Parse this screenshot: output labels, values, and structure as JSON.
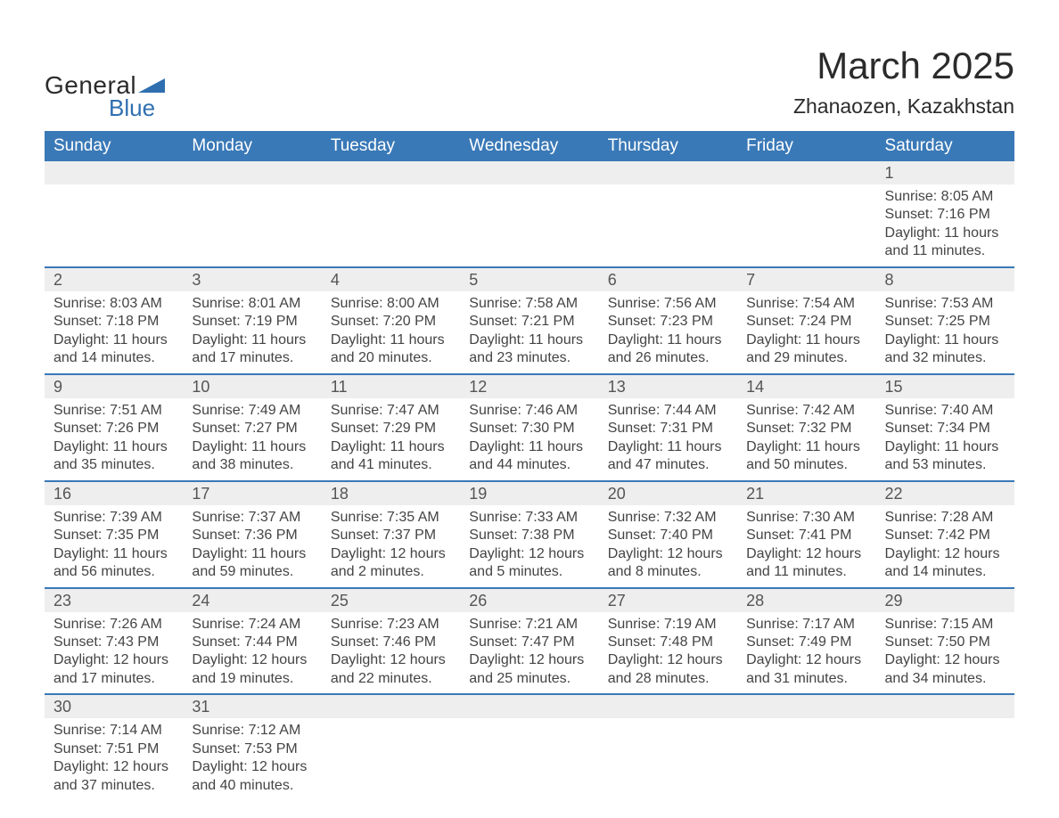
{
  "logo": {
    "word1": "General",
    "word2": "Blue",
    "text_color": "#2b2b2b",
    "accent_color": "#2f6fb0"
  },
  "title": "March 2025",
  "location": "Zhanaozen, Kazakhstan",
  "colors": {
    "header_bg": "#3a79b7",
    "header_text": "#ffffff",
    "strip_bg": "#eeeeee",
    "strip_border": "#3a79b7",
    "body_text": "#444444",
    "daynum_text": "#555555",
    "background": "#ffffff"
  },
  "fonts": {
    "title_size": 42,
    "location_size": 23,
    "dayhead_size": 19,
    "daynum_size": 18,
    "cell_size": 16
  },
  "day_headers": [
    "Sunday",
    "Monday",
    "Tuesday",
    "Wednesday",
    "Thursday",
    "Friday",
    "Saturday"
  ],
  "weeks": [
    [
      null,
      null,
      null,
      null,
      null,
      null,
      {
        "n": "1",
        "sunrise": "8:05 AM",
        "sunset": "7:16 PM",
        "daylight": "11 hours and 11 minutes."
      }
    ],
    [
      {
        "n": "2",
        "sunrise": "8:03 AM",
        "sunset": "7:18 PM",
        "daylight": "11 hours and 14 minutes."
      },
      {
        "n": "3",
        "sunrise": "8:01 AM",
        "sunset": "7:19 PM",
        "daylight": "11 hours and 17 minutes."
      },
      {
        "n": "4",
        "sunrise": "8:00 AM",
        "sunset": "7:20 PM",
        "daylight": "11 hours and 20 minutes."
      },
      {
        "n": "5",
        "sunrise": "7:58 AM",
        "sunset": "7:21 PM",
        "daylight": "11 hours and 23 minutes."
      },
      {
        "n": "6",
        "sunrise": "7:56 AM",
        "sunset": "7:23 PM",
        "daylight": "11 hours and 26 minutes."
      },
      {
        "n": "7",
        "sunrise": "7:54 AM",
        "sunset": "7:24 PM",
        "daylight": "11 hours and 29 minutes."
      },
      {
        "n": "8",
        "sunrise": "7:53 AM",
        "sunset": "7:25 PM",
        "daylight": "11 hours and 32 minutes."
      }
    ],
    [
      {
        "n": "9",
        "sunrise": "7:51 AM",
        "sunset": "7:26 PM",
        "daylight": "11 hours and 35 minutes."
      },
      {
        "n": "10",
        "sunrise": "7:49 AM",
        "sunset": "7:27 PM",
        "daylight": "11 hours and 38 minutes."
      },
      {
        "n": "11",
        "sunrise": "7:47 AM",
        "sunset": "7:29 PM",
        "daylight": "11 hours and 41 minutes."
      },
      {
        "n": "12",
        "sunrise": "7:46 AM",
        "sunset": "7:30 PM",
        "daylight": "11 hours and 44 minutes."
      },
      {
        "n": "13",
        "sunrise": "7:44 AM",
        "sunset": "7:31 PM",
        "daylight": "11 hours and 47 minutes."
      },
      {
        "n": "14",
        "sunrise": "7:42 AM",
        "sunset": "7:32 PM",
        "daylight": "11 hours and 50 minutes."
      },
      {
        "n": "15",
        "sunrise": "7:40 AM",
        "sunset": "7:34 PM",
        "daylight": "11 hours and 53 minutes."
      }
    ],
    [
      {
        "n": "16",
        "sunrise": "7:39 AM",
        "sunset": "7:35 PM",
        "daylight": "11 hours and 56 minutes."
      },
      {
        "n": "17",
        "sunrise": "7:37 AM",
        "sunset": "7:36 PM",
        "daylight": "11 hours and 59 minutes."
      },
      {
        "n": "18",
        "sunrise": "7:35 AM",
        "sunset": "7:37 PM",
        "daylight": "12 hours and 2 minutes."
      },
      {
        "n": "19",
        "sunrise": "7:33 AM",
        "sunset": "7:38 PM",
        "daylight": "12 hours and 5 minutes."
      },
      {
        "n": "20",
        "sunrise": "7:32 AM",
        "sunset": "7:40 PM",
        "daylight": "12 hours and 8 minutes."
      },
      {
        "n": "21",
        "sunrise": "7:30 AM",
        "sunset": "7:41 PM",
        "daylight": "12 hours and 11 minutes."
      },
      {
        "n": "22",
        "sunrise": "7:28 AM",
        "sunset": "7:42 PM",
        "daylight": "12 hours and 14 minutes."
      }
    ],
    [
      {
        "n": "23",
        "sunrise": "7:26 AM",
        "sunset": "7:43 PM",
        "daylight": "12 hours and 17 minutes."
      },
      {
        "n": "24",
        "sunrise": "7:24 AM",
        "sunset": "7:44 PM",
        "daylight": "12 hours and 19 minutes."
      },
      {
        "n": "25",
        "sunrise": "7:23 AM",
        "sunset": "7:46 PM",
        "daylight": "12 hours and 22 minutes."
      },
      {
        "n": "26",
        "sunrise": "7:21 AM",
        "sunset": "7:47 PM",
        "daylight": "12 hours and 25 minutes."
      },
      {
        "n": "27",
        "sunrise": "7:19 AM",
        "sunset": "7:48 PM",
        "daylight": "12 hours and 28 minutes."
      },
      {
        "n": "28",
        "sunrise": "7:17 AM",
        "sunset": "7:49 PM",
        "daylight": "12 hours and 31 minutes."
      },
      {
        "n": "29",
        "sunrise": "7:15 AM",
        "sunset": "7:50 PM",
        "daylight": "12 hours and 34 minutes."
      }
    ],
    [
      {
        "n": "30",
        "sunrise": "7:14 AM",
        "sunset": "7:51 PM",
        "daylight": "12 hours and 37 minutes."
      },
      {
        "n": "31",
        "sunrise": "7:12 AM",
        "sunset": "7:53 PM",
        "daylight": "12 hours and 40 minutes."
      },
      null,
      null,
      null,
      null,
      null
    ]
  ],
  "labels": {
    "sunrise": "Sunrise: ",
    "sunset": "Sunset: ",
    "daylight": "Daylight: "
  }
}
